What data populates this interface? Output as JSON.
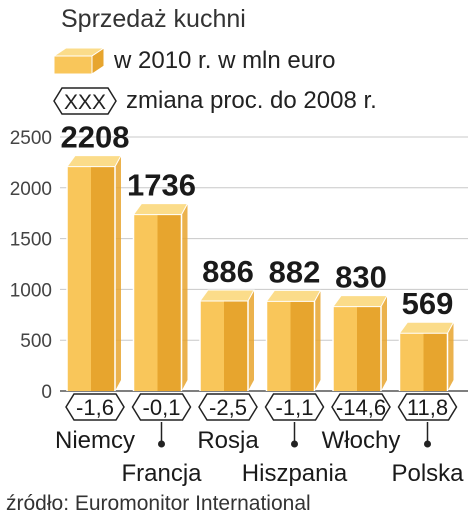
{
  "title": "Sprzedaż kuchni",
  "legend": {
    "series_label": "w 2010 r. w mln euro",
    "change_symbol": "XXX",
    "change_label": "zmiana proc. do 2008 r."
  },
  "source": "źródło: Euromonitor International",
  "colors": {
    "bar_light": "#f9c65a",
    "bar_dark": "#e7a52e",
    "bar_top": "#fbdc8a",
    "axis": "#555555",
    "grid": "#c8c8c8"
  },
  "chart_data": {
    "type": "bar",
    "title": "Sprzedaż kuchni",
    "categories": [
      "Niemcy",
      "Francja",
      "Rosja",
      "Hiszpania",
      "Włochy",
      "Polska"
    ],
    "series": [
      {
        "name": "w 2010 r. w mln euro",
        "values": [
          2208,
          1736,
          886,
          882,
          830,
          569
        ]
      }
    ],
    "change_pct": [
      "-1,6",
      "-0,1",
      "-2,5",
      "-1,1",
      "-14,6",
      "11,8"
    ],
    "yticks": [
      "0",
      "500",
      "1000",
      "1500",
      "2000",
      "2500"
    ],
    "ylim": [
      0,
      2500
    ],
    "grid": true
  }
}
